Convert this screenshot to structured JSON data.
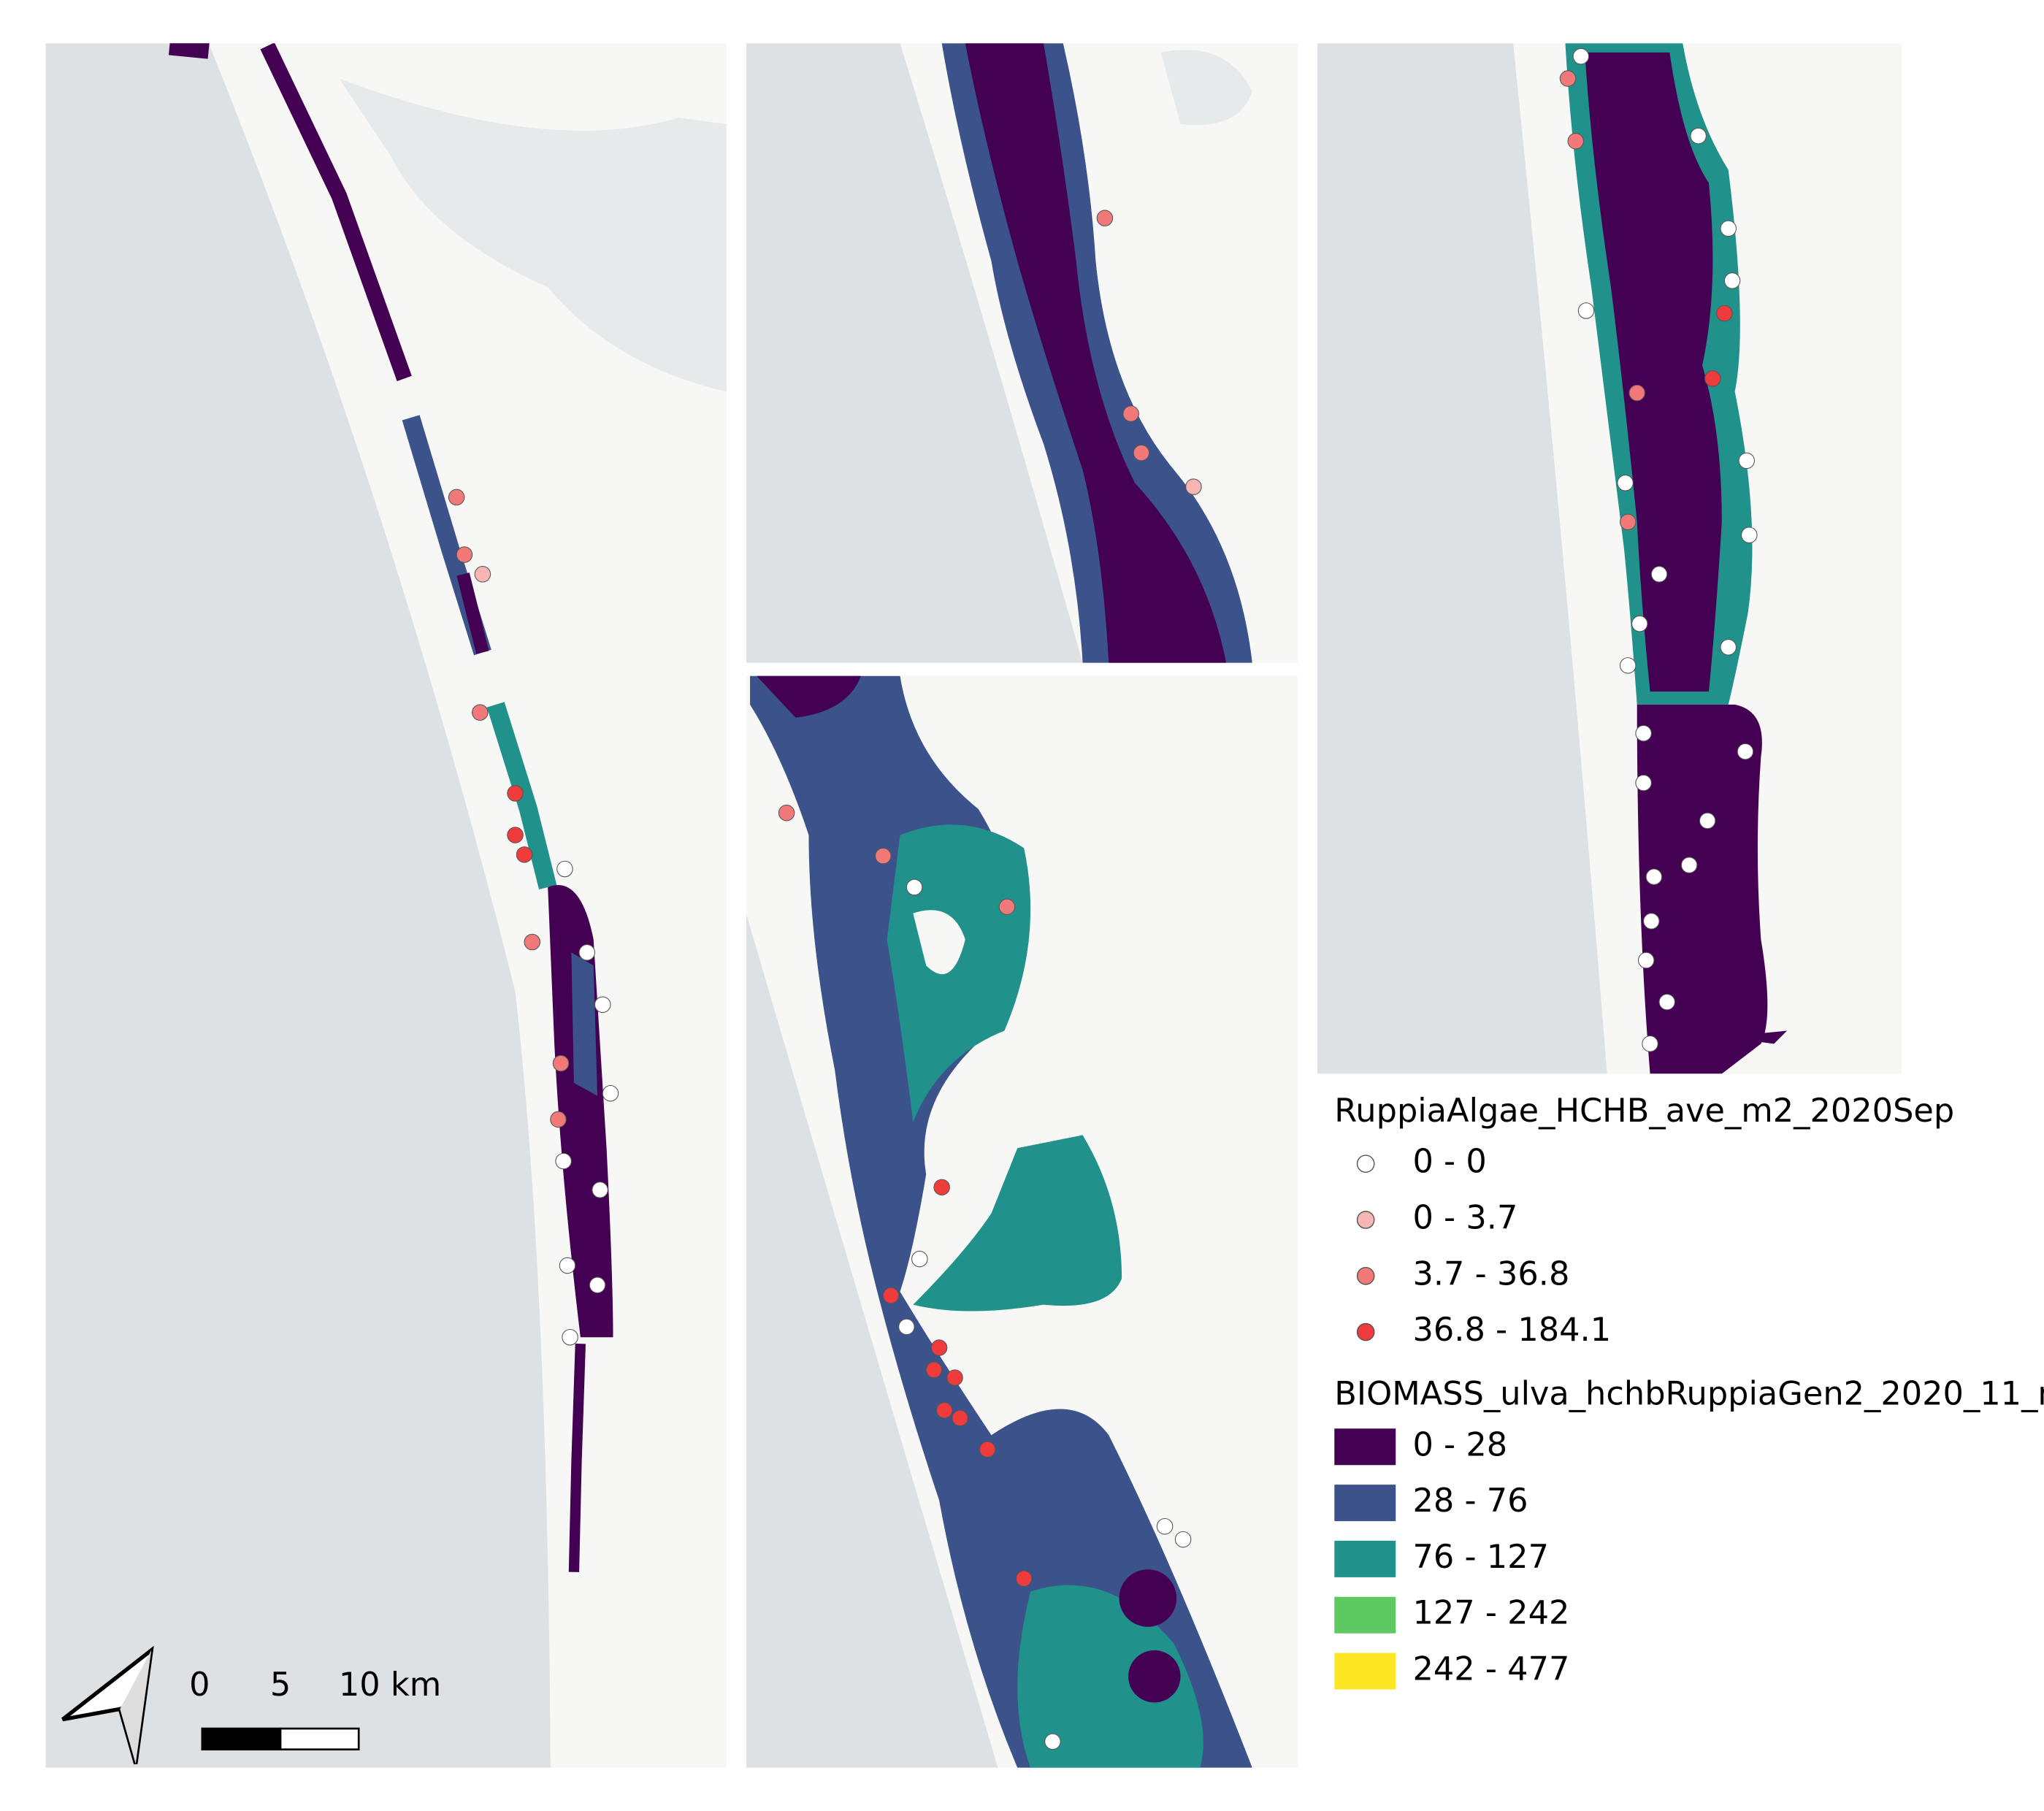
{
  "legends": [
    {
      "title": "RuppiaAlgae_HCHB_ave_m2_2020Sep",
      "symbol": "circle",
      "items": [
        {
          "label": "0 - 0",
          "color": "#ffffff"
        },
        {
          "label": "0 - 3.7",
          "color": "#f7b6b4"
        },
        {
          "label": "3.7 - 36.8",
          "color": "#f2797a"
        },
        {
          "label": "36.8 - 184.1",
          "color": "#ef3b3c"
        }
      ]
    },
    {
      "title": "BIOMASS_ulva_hchbRuppiaGen2_2020_11_m",
      "symbol": "rect",
      "items": [
        {
          "label": "0 - 28",
          "color": "#440154"
        },
        {
          "label": "28 - 76",
          "color": "#3b528b"
        },
        {
          "label": "76 - 127",
          "color": "#21918c"
        },
        {
          "label": "127 - 242",
          "color": "#5ec962"
        },
        {
          "label": "242 - 477",
          "color": "#fde725"
        }
      ]
    }
  ],
  "scale_bar": {
    "labels": [
      "0",
      "5",
      "10 km"
    ]
  }
}
